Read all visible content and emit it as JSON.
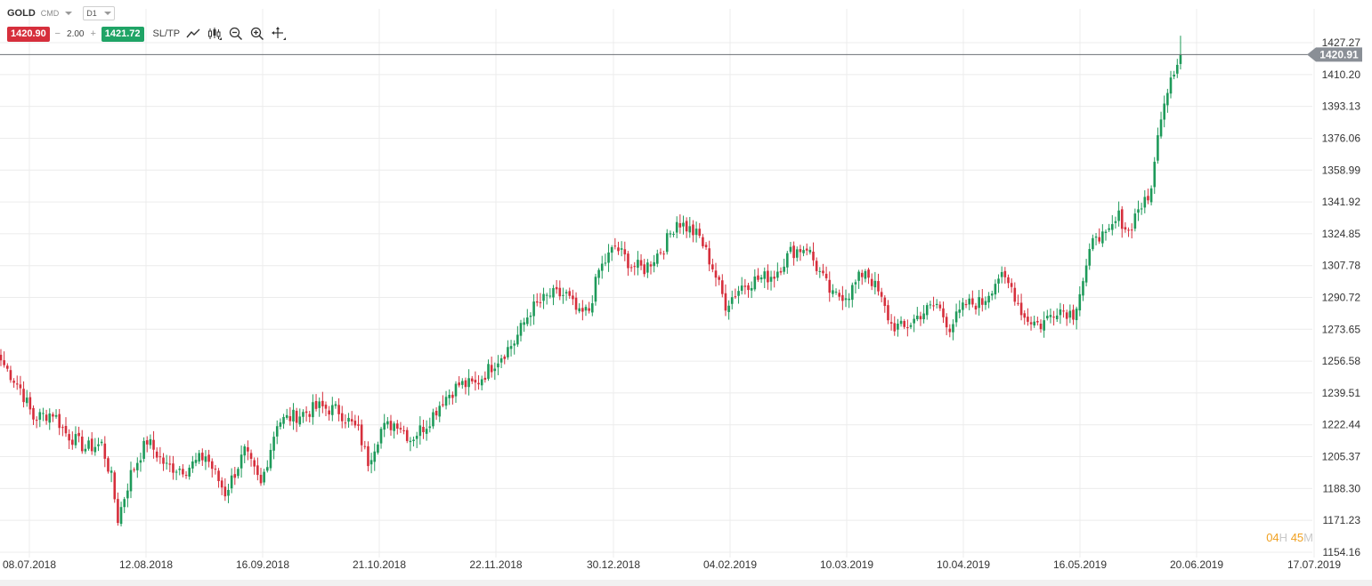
{
  "toolbar": {
    "symbol": "GOLD",
    "market": "CMD",
    "timeframe": "D1",
    "bid": "1420.90",
    "lot_minus": "−",
    "lot": "2.00",
    "lot_plus": "+",
    "ask": "1421.72",
    "sltp": "SL/TP",
    "icons": [
      "trend-line-icon",
      "candle-type-icon",
      "zoom-out-icon",
      "zoom-in-icon",
      "crosshair-icon"
    ]
  },
  "current_price_label": "1420.91",
  "timer": {
    "hours": "04",
    "hours_unit": "H",
    "minutes": "45",
    "minutes_unit": "M"
  },
  "colors": {
    "up": "#1e9a5a",
    "down": "#d62f3c",
    "grid": "#ececec",
    "price_tag": "#8a8f96",
    "axis_text": "#333333"
  },
  "chart_data": {
    "type": "candlestick",
    "title": "",
    "grid": true,
    "y_axis_side": "right",
    "ylim": [
      1154.16,
      1436.0
    ],
    "y_ticks": [
      1427.27,
      1410.2,
      1393.13,
      1376.06,
      1358.99,
      1341.92,
      1324.85,
      1307.78,
      1290.72,
      1273.65,
      1256.58,
      1239.51,
      1222.44,
      1205.37,
      1188.3,
      1171.23,
      1154.16
    ],
    "x_ticks": [
      "08.07.2018",
      "12.08.2018",
      "16.09.2018",
      "21.10.2018",
      "22.11.2018",
      "30.12.2018",
      "04.02.2019",
      "10.03.2019",
      "10.04.2019",
      "16.05.2019",
      "20.06.2019",
      "17.07.2019"
    ],
    "current_price": 1420.91,
    "close_anchors": [
      [
        0,
        1257
      ],
      [
        6,
        1242
      ],
      [
        10,
        1226
      ],
      [
        16,
        1229
      ],
      [
        20,
        1218
      ],
      [
        26,
        1210
      ],
      [
        31,
        1212
      ],
      [
        34,
        1194
      ],
      [
        36,
        1172
      ],
      [
        40,
        1196
      ],
      [
        45,
        1214
      ],
      [
        51,
        1200
      ],
      [
        57,
        1199
      ],
      [
        63,
        1206
      ],
      [
        69,
        1186
      ],
      [
        75,
        1208
      ],
      [
        80,
        1190
      ],
      [
        85,
        1224
      ],
      [
        92,
        1228
      ],
      [
        98,
        1232
      ],
      [
        104,
        1230
      ],
      [
        110,
        1219
      ],
      [
        113,
        1203
      ],
      [
        117,
        1220
      ],
      [
        122,
        1224
      ],
      [
        126,
        1215
      ],
      [
        131,
        1223
      ],
      [
        136,
        1236
      ],
      [
        141,
        1244
      ],
      [
        146,
        1244
      ],
      [
        152,
        1256
      ],
      [
        158,
        1267
      ],
      [
        163,
        1284
      ],
      [
        169,
        1292
      ],
      [
        174,
        1292
      ],
      [
        178,
        1281
      ],
      [
        181,
        1284
      ],
      [
        184,
        1305
      ],
      [
        189,
        1318
      ],
      [
        194,
        1308
      ],
      [
        198,
        1306
      ],
      [
        204,
        1318
      ],
      [
        208,
        1332
      ],
      [
        212,
        1327
      ],
      [
        215,
        1323
      ],
      [
        219,
        1307
      ],
      [
        223,
        1287
      ],
      [
        228,
        1297
      ],
      [
        232,
        1300
      ],
      [
        238,
        1303
      ],
      [
        243,
        1315
      ],
      [
        248,
        1318
      ],
      [
        251,
        1307
      ],
      [
        256,
        1291
      ],
      [
        261,
        1293
      ],
      [
        266,
        1306
      ],
      [
        270,
        1293
      ],
      [
        274,
        1276
      ],
      [
        278,
        1274
      ],
      [
        283,
        1282
      ],
      [
        288,
        1287
      ],
      [
        292,
        1275
      ],
      [
        297,
        1287
      ],
      [
        302,
        1288
      ],
      [
        307,
        1302
      ],
      [
        311,
        1296
      ],
      [
        315,
        1280
      ],
      [
        320,
        1276
      ],
      [
        325,
        1285
      ],
      [
        330,
        1282
      ],
      [
        333,
        1300
      ],
      [
        337,
        1326
      ],
      [
        340,
        1322
      ],
      [
        344,
        1334
      ],
      [
        347,
        1326
      ],
      [
        350,
        1339
      ],
      [
        353,
        1342
      ],
      [
        355,
        1362
      ],
      [
        357,
        1390
      ],
      [
        360,
        1410
      ],
      [
        363,
        1421
      ]
    ],
    "last_bar_high": 1431
  }
}
